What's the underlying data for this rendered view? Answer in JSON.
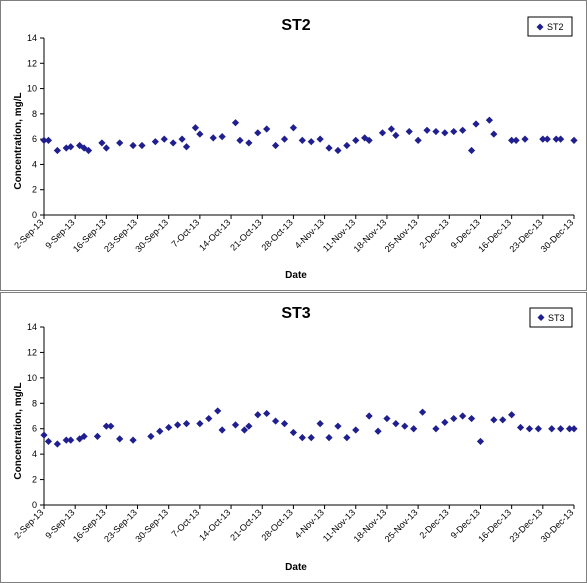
{
  "chart_data": [
    {
      "type": "scatter",
      "title": "ST2",
      "xlabel": "Date",
      "ylabel": "Concentration, mg/L",
      "ylim": [
        0,
        14
      ],
      "yticks": [
        0,
        2,
        4,
        6,
        8,
        10,
        12,
        14
      ],
      "xlim": [
        "2013-09-02",
        "2013-12-30"
      ],
      "xticks": [
        "2-Sep-13",
        "9-Sep-13",
        "16-Sep-13",
        "23-Sep-13",
        "30-Sep-13",
        "7-Oct-13",
        "14-Oct-13",
        "21-Oct-13",
        "28-Oct-13",
        "4-Nov-13",
        "11-Nov-13",
        "18-Nov-13",
        "25-Nov-13",
        "2-Dec-13",
        "9-Dec-13",
        "16-Dec-13",
        "23-Dec-13",
        "30-Dec-13"
      ],
      "legend": "top-right",
      "marker_color": "#1f1f8f",
      "series": [
        {
          "name": "ST2",
          "x": [
            "2013-09-02",
            "2013-09-03",
            "2013-09-05",
            "2013-09-07",
            "2013-09-08",
            "2013-09-10",
            "2013-09-11",
            "2013-09-12",
            "2013-09-15",
            "2013-09-16",
            "2013-09-19",
            "2013-09-22",
            "2013-09-24",
            "2013-09-27",
            "2013-09-29",
            "2013-10-01",
            "2013-10-03",
            "2013-10-04",
            "2013-10-06",
            "2013-10-07",
            "2013-10-10",
            "2013-10-12",
            "2013-10-15",
            "2013-10-16",
            "2013-10-18",
            "2013-10-20",
            "2013-10-22",
            "2013-10-24",
            "2013-10-26",
            "2013-10-28",
            "2013-10-30",
            "2013-11-01",
            "2013-11-03",
            "2013-11-05",
            "2013-11-07",
            "2013-11-09",
            "2013-11-11",
            "2013-11-13",
            "2013-11-14",
            "2013-11-17",
            "2013-11-19",
            "2013-11-20",
            "2013-11-23",
            "2013-11-25",
            "2013-11-27",
            "2013-11-29",
            "2013-12-01",
            "2013-12-03",
            "2013-12-05",
            "2013-12-07",
            "2013-12-08",
            "2013-12-11",
            "2013-12-12",
            "2013-12-16",
            "2013-12-17",
            "2013-12-19",
            "2013-12-23",
            "2013-12-24",
            "2013-12-26",
            "2013-12-27",
            "2013-12-30"
          ],
          "y": [
            5.9,
            5.9,
            5.1,
            5.3,
            5.4,
            5.5,
            5.3,
            5.1,
            5.7,
            5.3,
            5.7,
            5.5,
            5.5,
            5.8,
            6.0,
            5.7,
            6.0,
            5.4,
            6.9,
            6.4,
            6.1,
            6.2,
            7.3,
            5.9,
            5.7,
            6.5,
            6.8,
            5.5,
            6.0,
            6.9,
            5.9,
            5.8,
            6.0,
            5.3,
            5.1,
            5.5,
            5.9,
            6.1,
            5.9,
            6.5,
            6.8,
            6.3,
            6.6,
            5.9,
            6.7,
            6.6,
            6.5,
            6.6,
            6.7,
            5.1,
            7.2,
            7.5,
            6.4,
            5.9,
            5.9,
            6.0,
            6.0,
            6.0,
            6.0,
            6.0,
            5.9
          ]
        }
      ]
    },
    {
      "type": "scatter",
      "title": "ST3",
      "xlabel": "Date",
      "ylabel": "Concentration, mg/L",
      "ylim": [
        0,
        14
      ],
      "yticks": [
        0,
        2,
        4,
        6,
        8,
        10,
        12,
        14
      ],
      "xlim": [
        "2013-09-02",
        "2013-12-30"
      ],
      "xticks": [
        "2-Sep-13",
        "9-Sep-13",
        "16-Sep-13",
        "23-Sep-13",
        "30-Sep-13",
        "7-Oct-13",
        "14-Oct-13",
        "21-Oct-13",
        "28-Oct-13",
        "4-Nov-13",
        "11-Nov-13",
        "18-Nov-13",
        "25-Nov-13",
        "2-Dec-13",
        "9-Dec-13",
        "16-Dec-13",
        "23-Dec-13",
        "30-Dec-13"
      ],
      "legend": "top-right",
      "marker_color": "#1f1f8f",
      "series": [
        {
          "name": "ST3",
          "x": [
            "2013-09-02",
            "2013-09-03",
            "2013-09-05",
            "2013-09-07",
            "2013-09-08",
            "2013-09-10",
            "2013-09-11",
            "2013-09-14",
            "2013-09-16",
            "2013-09-17",
            "2013-09-19",
            "2013-09-22",
            "2013-09-26",
            "2013-09-28",
            "2013-09-30",
            "2013-10-02",
            "2013-10-04",
            "2013-10-07",
            "2013-10-09",
            "2013-10-11",
            "2013-10-12",
            "2013-10-15",
            "2013-10-17",
            "2013-10-18",
            "2013-10-20",
            "2013-10-22",
            "2013-10-24",
            "2013-10-26",
            "2013-10-28",
            "2013-10-30",
            "2013-11-01",
            "2013-11-03",
            "2013-11-05",
            "2013-11-07",
            "2013-11-09",
            "2013-11-11",
            "2013-11-14",
            "2013-11-16",
            "2013-11-18",
            "2013-11-20",
            "2013-11-22",
            "2013-11-24",
            "2013-11-26",
            "2013-11-29",
            "2013-12-01",
            "2013-12-03",
            "2013-12-05",
            "2013-12-07",
            "2013-12-09",
            "2013-12-12",
            "2013-12-14",
            "2013-12-16",
            "2013-12-18",
            "2013-12-20",
            "2013-12-22",
            "2013-12-25",
            "2013-12-27",
            "2013-12-29",
            "2013-12-30"
          ],
          "y": [
            5.5,
            5.0,
            4.8,
            5.1,
            5.1,
            5.2,
            5.4,
            5.4,
            6.2,
            6.2,
            5.2,
            5.1,
            5.4,
            5.8,
            6.1,
            6.3,
            6.4,
            6.4,
            6.8,
            7.4,
            5.9,
            6.3,
            5.9,
            6.2,
            7.1,
            7.2,
            6.6,
            6.4,
            5.7,
            5.3,
            5.3,
            6.4,
            5.3,
            6.2,
            5.3,
            5.9,
            7.0,
            5.8,
            6.8,
            6.4,
            6.2,
            6.0,
            7.3,
            6.0,
            6.5,
            6.8,
            7.0,
            6.8,
            5.0,
            6.7,
            6.7,
            7.1,
            6.1,
            6.0,
            6.0,
            6.0,
            6.0,
            6.0,
            6.0
          ]
        }
      ]
    }
  ]
}
